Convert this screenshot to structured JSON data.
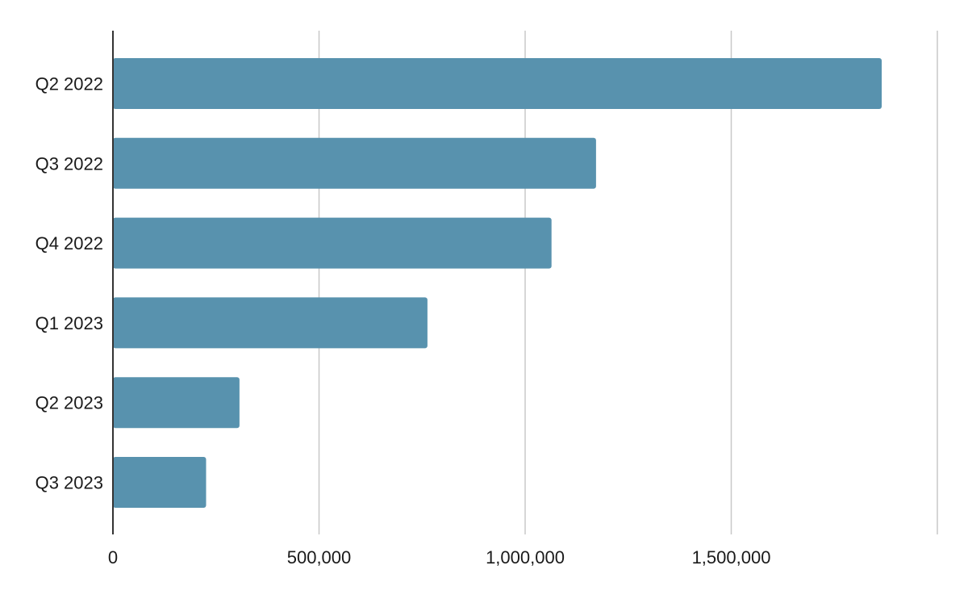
{
  "chart_data": {
    "type": "bar",
    "orientation": "horizontal",
    "categories": [
      "Q2 2022",
      "Q3 2022",
      "Q4 2022",
      "Q1 2023",
      "Q2 2023",
      "Q3 2023"
    ],
    "values": [
      1865000,
      1172000,
      1064000,
      763000,
      307000,
      226000
    ],
    "xlim": [
      0,
      2000000
    ],
    "xticks": [
      0,
      500000,
      1000000,
      1500000
    ],
    "xtick_labels": [
      "0",
      "500,000",
      "1,000,000",
      "1,500,000"
    ],
    "grid": "vertical",
    "bar_color": "#5892ae",
    "legend": "none"
  }
}
